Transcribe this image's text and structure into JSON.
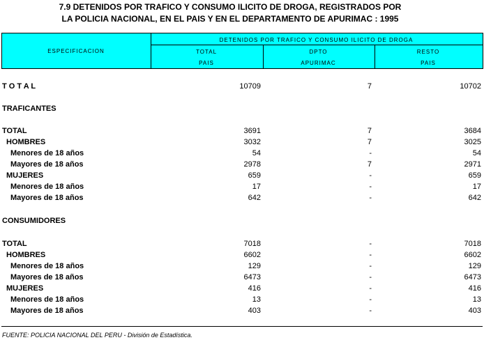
{
  "header": {
    "title_line1": "7.9  DETENIDOS POR TRAFICO Y CONSUMO ILICITO DE DROGA, REGISTRADOS POR",
    "title_line2": "LA POLICIA NACIONAL, EN EL PAIS Y EN EL DEPARTAMENTO DE APURIMAC : 1995"
  },
  "table": {
    "spec_header": "ESPECIFICACION",
    "group_header": "DETENIDOS  POR  TRAFICO  Y  CONSUMO  ILICITO  DE  DROGA",
    "columns": [
      [
        "TOTAL",
        "PAIS"
      ],
      [
        "DPTO",
        "APURIMAC"
      ],
      [
        "RESTO",
        "PAIS"
      ]
    ],
    "rows": [
      {
        "label": "T O T A L",
        "values": [
          10709,
          7,
          10702
        ]
      },
      {
        "label": "TRAFICANTES"
      },
      {
        "label": "TOTAL",
        "values": [
          3691,
          7,
          3684
        ]
      },
      {
        "label": "HOMBRES",
        "values": [
          3032,
          7,
          3025
        ]
      },
      {
        "label": "Menores de 18 años",
        "values": [
          54,
          "-",
          54
        ]
      },
      {
        "label": "Mayores de 18 años",
        "values": [
          2978,
          7,
          2971
        ]
      },
      {
        "label": "MUJERES",
        "values": [
          659,
          "-",
          659
        ]
      },
      {
        "label": "Menores de 18 años",
        "values": [
          17,
          "-",
          17
        ]
      },
      {
        "label": "Mayores de 18 años",
        "values": [
          642,
          "-",
          642
        ]
      },
      {
        "label": "CONSUMIDORES"
      },
      {
        "label": "TOTAL",
        "values": [
          7018,
          "-",
          7018
        ]
      },
      {
        "label": "HOMBRES",
        "values": [
          6602,
          "-",
          6602
        ]
      },
      {
        "label": "Menores de 18 años",
        "values": [
          129,
          "-",
          129
        ]
      },
      {
        "label": "Mayores de 18 años",
        "values": [
          6473,
          "-",
          6473
        ]
      },
      {
        "label": "MUJERES",
        "values": [
          416,
          "-",
          416
        ]
      },
      {
        "label": "Menores de 18 años",
        "values": [
          13,
          "-",
          13
        ]
      },
      {
        "label": "Mayores de 18 años",
        "values": [
          403,
          "-",
          403
        ]
      }
    ]
  },
  "footer": {
    "source": "FUENTE: POLICIA NACIONAL DEL PERU - División de Estadística."
  }
}
